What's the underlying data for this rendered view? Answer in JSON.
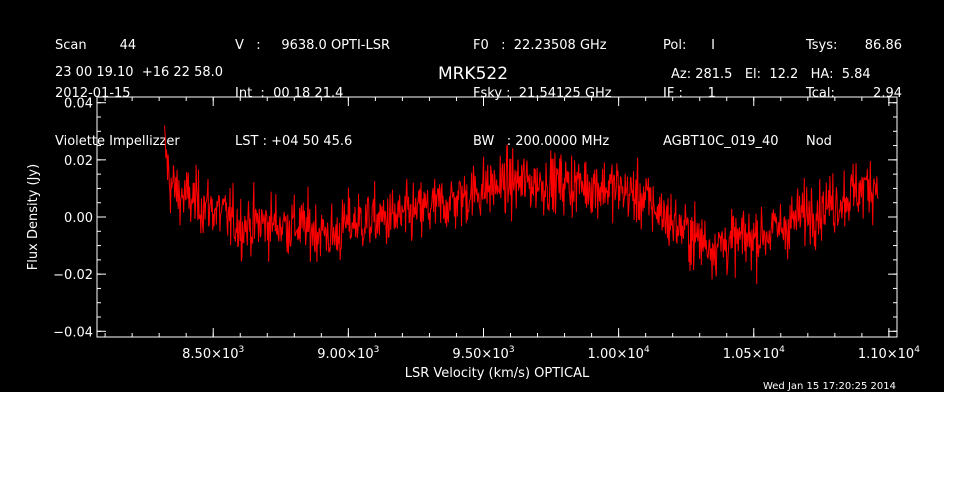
{
  "header": {
    "col1": [
      "Scan        44",
      "2012-01-15",
      "Violette Impellizzer"
    ],
    "col2": [
      "V   :     9638.0 OPTI-LSR",
      "Int  :  00 18 21.4",
      "LST : +04 50 45.6"
    ],
    "col3": [
      "F0   :  22.23508 GHz",
      "Fsky :  21.54125 GHz",
      "BW   : 200.0000 MHz"
    ],
    "col4": [
      "Pol:      I",
      "IF :      1",
      "AGBT10C_019_40"
    ],
    "col5": [
      "Tsys:",
      "Tcal:",
      "Nod"
    ],
    "col6": [
      "86.86",
      "2.94",
      ""
    ],
    "coords": "23 00 19.10  +16 22 58.0",
    "pointing": "Az: 281.5   El:  12.2   HA:  5.84",
    "timestamp": "Wed Jan 15 17:20:25 2014"
  },
  "chart_data": {
    "type": "line",
    "title": "MRK522",
    "xlabel": "LSR Velocity (km/s) OPTICAL",
    "ylabel": "Flux Density (Jy)",
    "xlim": [
      8070,
      11030
    ],
    "ylim": [
      -0.042,
      0.042
    ],
    "xticks": [
      {
        "value": 8500,
        "mant": "8.50",
        "exp": "3"
      },
      {
        "value": 9000,
        "mant": "9.00",
        "exp": "3"
      },
      {
        "value": 9500,
        "mant": "9.50",
        "exp": "3"
      },
      {
        "value": 10000,
        "mant": "1.00",
        "exp": "4"
      },
      {
        "value": 10500,
        "mant": "1.05",
        "exp": "4"
      },
      {
        "value": 11000,
        "mant": "1.10",
        "exp": "4"
      }
    ],
    "yticks": [
      {
        "value": 0.04,
        "label": "0.04"
      },
      {
        "value": 0.02,
        "label": "0.02"
      },
      {
        "value": 0.0,
        "label": "0.00"
      },
      {
        "value": -0.02,
        "label": "−0.02"
      },
      {
        "value": -0.04,
        "label": "−0.04"
      }
    ],
    "line_color": "#ff0000",
    "series_baseline": {
      "x": [
        8320,
        8340,
        8370,
        8420,
        8500,
        8600,
        8700,
        8800,
        8900,
        8950,
        9000,
        9100,
        9200,
        9300,
        9400,
        9500,
        9600,
        9700,
        9800,
        9900,
        10000,
        10100,
        10200,
        10300,
        10350,
        10400,
        10500,
        10600,
        10700,
        10800,
        10900,
        10960
      ],
      "y": [
        0.025,
        0.012,
        0.008,
        0.006,
        0.003,
        -0.003,
        -0.002,
        -0.003,
        -0.005,
        -0.007,
        -0.002,
        -0.001,
        0.0,
        0.003,
        0.006,
        0.01,
        0.012,
        0.012,
        0.012,
        0.011,
        0.01,
        0.006,
        -0.002,
        -0.008,
        -0.01,
        -0.009,
        -0.007,
        -0.004,
        0.002,
        0.005,
        0.01,
        0.012
      ]
    },
    "noise_rms": 0.0075,
    "n_points": 1200
  }
}
